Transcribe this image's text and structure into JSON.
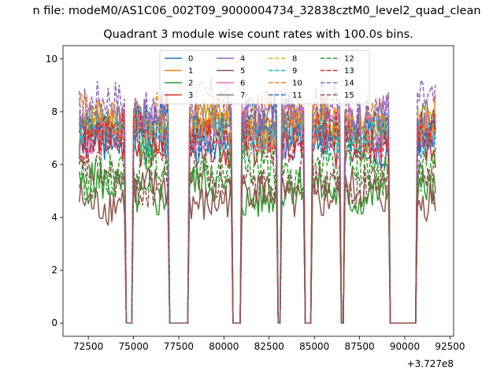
{
  "chart_data": {
    "type": "line",
    "suptitle": "n file: modeM0/AS1C06_002T09_9000004734_32838cztM0_level2_quad_clean",
    "title": "Quadrant 3 module wise count rates with 100.0s bins.",
    "xlabel": "",
    "ylabel": "",
    "x_offset_label": "+3.727e8",
    "xlim": [
      71100,
      92700
    ],
    "ylim": [
      -0.5,
      10.5
    ],
    "x_ticks": [
      72500,
      75000,
      77500,
      80000,
      82500,
      85000,
      87500,
      90000,
      92500
    ],
    "x_tick_labels": [
      "72500",
      "75000",
      "77500",
      "80000",
      "82500",
      "85000",
      "87500",
      "90000",
      "92500"
    ],
    "y_ticks": [
      0,
      2,
      4,
      6,
      8,
      10
    ],
    "y_tick_labels": [
      "0",
      "2",
      "4",
      "6",
      "8",
      "10"
    ],
    "grid": false,
    "legend_position": "upper-center",
    "legend_columns": 4,
    "bin_seconds": 100,
    "segments": [
      [
        72000,
        74500
      ],
      [
        75000,
        76900
      ],
      [
        78100,
        80400
      ],
      [
        81000,
        82900
      ],
      [
        83200,
        84400
      ],
      [
        84900,
        86400
      ],
      [
        86700,
        86800
      ],
      [
        86850,
        89100
      ],
      [
        90700,
        91700
      ]
    ],
    "series": [
      {
        "name": "0",
        "color": "#1f77b4",
        "dash": "solid",
        "level": 7.0
      },
      {
        "name": "1",
        "color": "#ff7f0e",
        "dash": "solid",
        "level": 7.6
      },
      {
        "name": "2",
        "color": "#2ca02c",
        "dash": "solid",
        "level": 5.0
      },
      {
        "name": "3",
        "color": "#d62728",
        "dash": "solid",
        "level": 6.9
      },
      {
        "name": "4",
        "color": "#9467bd",
        "dash": "solid",
        "level": 7.7
      },
      {
        "name": "5",
        "color": "#8c564b",
        "dash": "solid",
        "level": 4.8
      },
      {
        "name": "6",
        "color": "#e377c2",
        "dash": "solid",
        "level": 7.2
      },
      {
        "name": "7",
        "color": "#7f7f7f",
        "dash": "solid",
        "level": 7.5
      },
      {
        "name": "8",
        "color": "#bcbd22",
        "dash": "dashed",
        "level": 7.4
      },
      {
        "name": "9",
        "color": "#17becf",
        "dash": "dashed",
        "level": 7.1
      },
      {
        "name": "10",
        "color": "#ff7f0e",
        "dash": "dashed",
        "level": 7.8
      },
      {
        "name": "11",
        "color": "#1f77b4",
        "dash": "dashed",
        "level": 7.3
      },
      {
        "name": "12",
        "color": "#2ca02c",
        "dash": "dashed",
        "level": 5.8
      },
      {
        "name": "13",
        "color": "#d62728",
        "dash": "dashed",
        "level": 7.0
      },
      {
        "name": "14",
        "color": "#9467bd",
        "dash": "dashed",
        "level": 8.2
      },
      {
        "name": "15",
        "color": "#8c564b",
        "dash": "dashed",
        "level": 5.4
      }
    ]
  }
}
